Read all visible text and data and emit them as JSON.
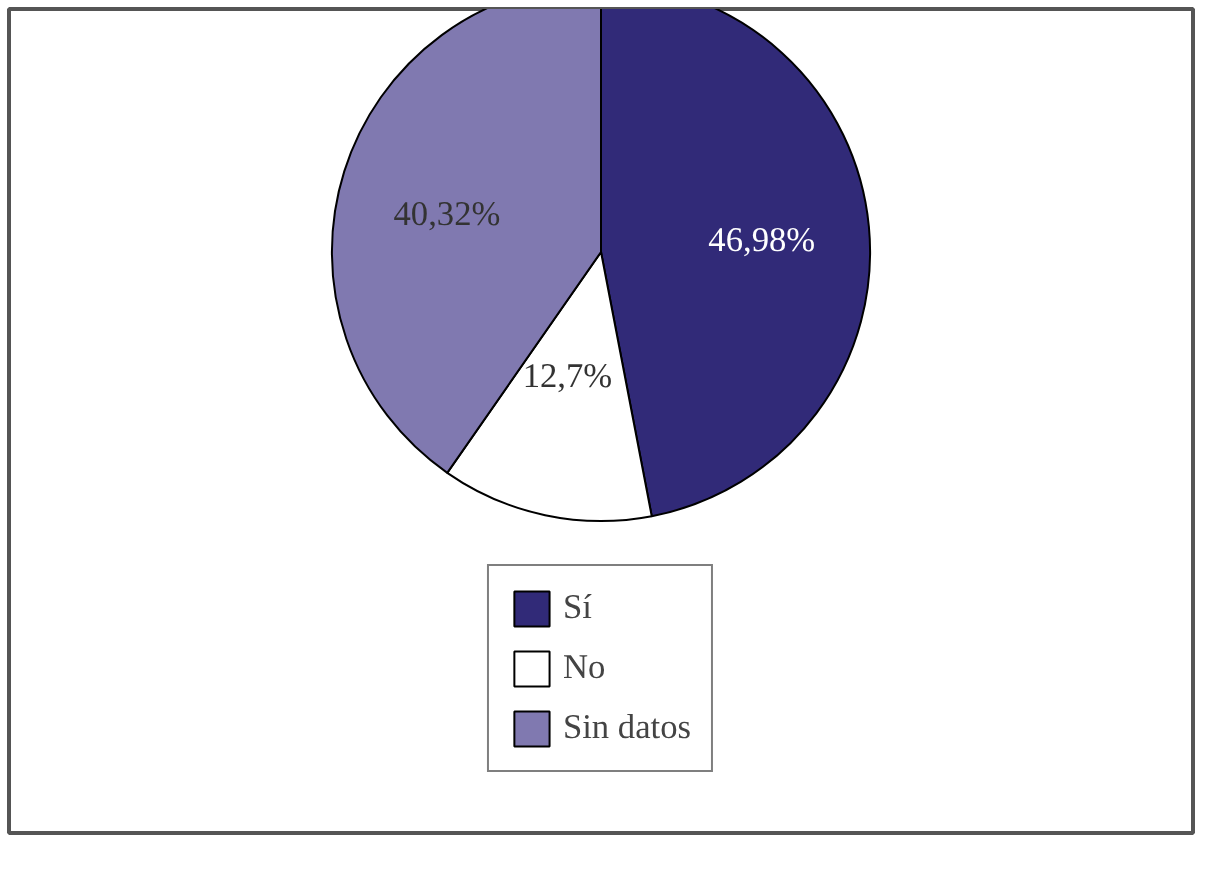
{
  "chart_data": {
    "type": "pie",
    "categories": [
      "Sí",
      "No",
      "Sin datos"
    ],
    "values": [
      46.98,
      12.7,
      40.32
    ],
    "colors": [
      "#312a78",
      "#ffffff",
      "#8079b0"
    ],
    "value_labels": [
      "46,98%",
      "12,7%",
      "40,32%"
    ],
    "legend": "bottom"
  }
}
